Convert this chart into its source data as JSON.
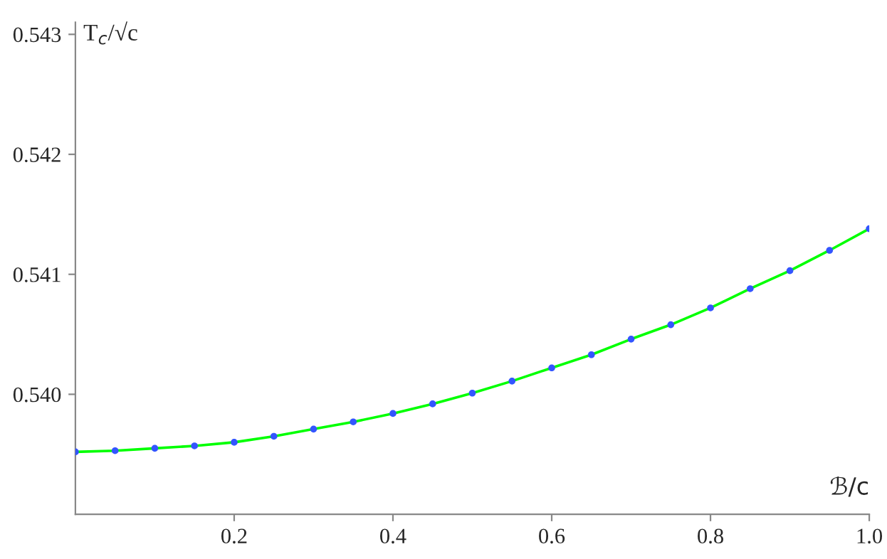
{
  "chart_data": {
    "type": "line",
    "xlabel": "ℬ/c",
    "ylabel": "T$_{c}$/√c",
    "x": [
      0,
      0.05,
      0.1,
      0.15,
      0.2,
      0.25,
      0.3,
      0.35,
      0.4,
      0.45,
      0.5,
      0.55,
      0.6,
      0.65,
      0.7,
      0.75,
      0.8,
      0.85,
      0.9,
      0.95,
      1.0
    ],
    "series": [
      {
        "color": "#00ff00",
        "marker": "none",
        "values": [
          0.53952,
          0.53953,
          0.53955,
          0.53957,
          0.5396,
          0.53965,
          0.53971,
          0.53977,
          0.53984,
          0.53992,
          0.54001,
          0.54011,
          0.54022,
          0.54033,
          0.54046,
          0.54058,
          0.54072,
          0.54088,
          0.54103,
          0.5412,
          0.54138
        ]
      },
      {
        "type": "scatter",
        "color": "#3355ff",
        "marker": "circle",
        "values": [
          0.53952,
          0.53953,
          0.53955,
          0.53957,
          0.5396,
          0.53965,
          0.53971,
          0.53977,
          0.53984,
          0.53992,
          0.54001,
          0.54011,
          0.54022,
          0.54033,
          0.54046,
          0.54058,
          0.54072,
          0.54088,
          0.54103,
          0.5412,
          0.54138
        ]
      }
    ],
    "xlim": [
      0,
      1.0
    ],
    "ylim": [
      0.539,
      0.5431
    ],
    "xticks": [
      {
        "value": 0.2,
        "label": "0.2"
      },
      {
        "value": 0.4,
        "label": "0.4"
      },
      {
        "value": 0.6,
        "label": "0.6"
      },
      {
        "value": 0.8,
        "label": "0.8"
      },
      {
        "value": 1.0,
        "label": "1.0"
      }
    ],
    "yticks": [
      {
        "value": 0.54,
        "label": "0.540"
      },
      {
        "value": 0.541,
        "label": "0.541"
      },
      {
        "value": 0.542,
        "label": "0.542"
      },
      {
        "value": 0.543,
        "label": "0.543"
      }
    ],
    "grid": false,
    "legend": false
  }
}
